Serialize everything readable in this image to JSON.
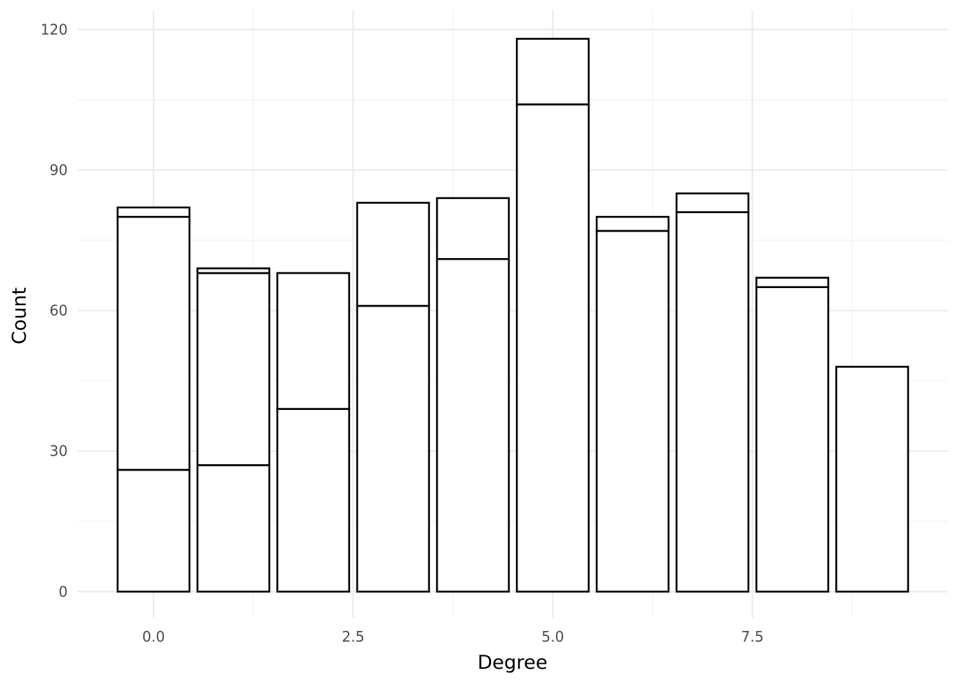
{
  "chart_data": {
    "type": "bar",
    "stacked": true,
    "title": "",
    "xlabel": "Degree",
    "ylabel": "Count",
    "xlim": [
      -0.95,
      9.95
    ],
    "ylim": [
      -5.5,
      124
    ],
    "x_ticks": [
      0.0,
      2.5,
      5.0,
      7.5
    ],
    "x_tick_labels": [
      "0.0",
      "2.5",
      "5.0",
      "7.5"
    ],
    "y_ticks": [
      0,
      30,
      60,
      90,
      120
    ],
    "y_tick_labels": [
      "0",
      "30",
      "60",
      "90",
      "120"
    ],
    "grid": true,
    "legend": "none",
    "bar_fill": "#ffffff",
    "bar_outline": "#000000",
    "bars": [
      {
        "x": 0,
        "segments": [
          26,
          54,
          2
        ]
      },
      {
        "x": 1,
        "segments": [
          27,
          41,
          1
        ]
      },
      {
        "x": 2,
        "segments": [
          39,
          29
        ]
      },
      {
        "x": 3,
        "segments": [
          61,
          22
        ]
      },
      {
        "x": 4,
        "segments": [
          71,
          13
        ]
      },
      {
        "x": 5,
        "segments": [
          104,
          14
        ]
      },
      {
        "x": 6,
        "segments": [
          77,
          3
        ]
      },
      {
        "x": 7,
        "segments": [
          81,
          4
        ]
      },
      {
        "x": 8,
        "segments": [
          65,
          2
        ]
      },
      {
        "x": 9,
        "segments": [
          48
        ]
      }
    ]
  }
}
